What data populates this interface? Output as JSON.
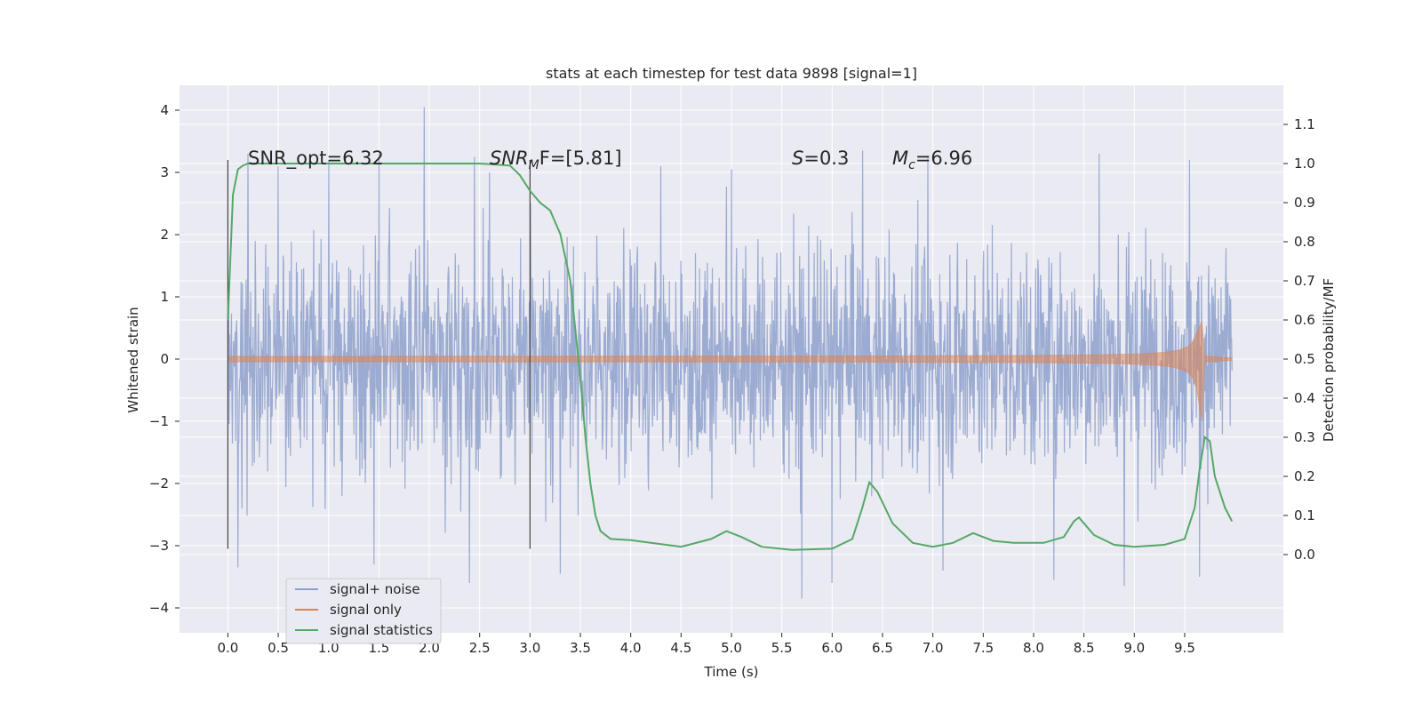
{
  "chart_data": {
    "type": "line",
    "title": "stats at each timestep for test data 9898 [signal=1]",
    "xlabel": "Time (s)",
    "ylabel": "Whitened strain",
    "y2label": "Detection probability/MF",
    "xlim": [
      -0.48,
      10.48
    ],
    "ylim": [
      -4.4,
      4.4
    ],
    "y2lim": [
      -0.2,
      1.2
    ],
    "xticks": [
      "0.0",
      "0.5",
      "1.0",
      "1.5",
      "2.0",
      "2.5",
      "3.0",
      "3.5",
      "4.0",
      "4.5",
      "5.0",
      "5.5",
      "6.0",
      "6.5",
      "7.0",
      "7.5",
      "8.0",
      "8.5",
      "9.0",
      "9.5"
    ],
    "yticks": [
      "4",
      "3",
      "2",
      "1",
      "0",
      "−1",
      "−2",
      "−3",
      "−4"
    ],
    "y2ticks": [
      "1.1",
      "1.0",
      "0.9",
      "0.8",
      "0.7",
      "0.6",
      "0.5",
      "0.4",
      "0.3",
      "0.2",
      "0.1",
      "0.0"
    ],
    "grid": true,
    "legend_position": "lower-left",
    "colors": {
      "noise": "#8da0cb",
      "signal": "#dd8452",
      "stat": "#55a868",
      "panel": "#eaeaf2",
      "grid": "#ffffff"
    },
    "annotations": [
      "SNR_opt=6.32",
      "SNR",
      "M",
      "F=[5.81]",
      "S",
      "=0.3",
      "M",
      "c",
      "=6.96"
    ],
    "series": [
      {
        "name": "signal+ noise",
        "axis": "left",
        "description_range": {
          "t_start": 0.0,
          "t_end": 9.97,
          "y_min": -3.9,
          "y_max": 4.05
        },
        "peaks_high": [
          [
            0.2,
            3.3
          ],
          [
            0.5,
            3.1
          ],
          [
            1.0,
            3.2
          ],
          [
            1.5,
            3.3
          ],
          [
            1.95,
            4.05
          ],
          [
            2.45,
            3.25
          ],
          [
            2.6,
            3.0
          ],
          [
            4.3,
            3.1
          ],
          [
            5.0,
            3.05
          ],
          [
            6.3,
            3.35
          ],
          [
            6.95,
            3.25
          ],
          [
            8.65,
            3.3
          ],
          [
            9.55,
            3.2
          ]
        ],
        "peaks_low": [
          [
            0.1,
            -3.35
          ],
          [
            1.45,
            -3.3
          ],
          [
            2.4,
            -3.6
          ],
          [
            3.3,
            -3.45
          ],
          [
            5.7,
            -3.85
          ],
          [
            6.0,
            -3.6
          ],
          [
            7.1,
            -3.4
          ],
          [
            8.2,
            -3.55
          ],
          [
            8.9,
            -3.65
          ],
          [
            9.65,
            -3.5
          ]
        ]
      },
      {
        "name": "signal only",
        "axis": "left",
        "envelope": {
          "t_start": 0.0,
          "t_merge": 9.67,
          "t_end": 9.97,
          "peak_amp_pos": 0.6,
          "peak_amp_neg": -1.0
        }
      },
      {
        "name": "signal statistics",
        "axis": "right",
        "x": [
          0.0,
          0.05,
          0.1,
          0.15,
          0.2,
          0.3,
          1.0,
          2.0,
          2.5,
          2.8,
          2.9,
          3.0,
          3.1,
          3.2,
          3.3,
          3.4,
          3.5,
          3.55,
          3.6,
          3.65,
          3.7,
          3.8,
          4.0,
          4.2,
          4.5,
          4.8,
          4.95,
          5.1,
          5.3,
          5.6,
          6.0,
          6.2,
          6.3,
          6.37,
          6.45,
          6.6,
          6.8,
          7.0,
          7.2,
          7.4,
          7.6,
          7.8,
          8.1,
          8.3,
          8.4,
          8.45,
          8.5,
          8.6,
          8.8,
          9.0,
          9.3,
          9.5,
          9.6,
          9.65,
          9.7,
          9.75,
          9.8,
          9.9,
          9.97
        ],
        "y": [
          0.6,
          0.92,
          0.985,
          0.995,
          1.0,
          1.0,
          1.0,
          1.0,
          1.0,
          0.995,
          0.97,
          0.93,
          0.9,
          0.88,
          0.82,
          0.7,
          0.45,
          0.3,
          0.18,
          0.1,
          0.06,
          0.04,
          0.037,
          0.03,
          0.02,
          0.04,
          0.06,
          0.045,
          0.02,
          0.012,
          0.015,
          0.04,
          0.12,
          0.185,
          0.16,
          0.08,
          0.03,
          0.02,
          0.03,
          0.055,
          0.035,
          0.03,
          0.03,
          0.045,
          0.085,
          0.095,
          0.08,
          0.05,
          0.025,
          0.02,
          0.025,
          0.04,
          0.12,
          0.22,
          0.3,
          0.29,
          0.2,
          0.12,
          0.085
        ]
      }
    ],
    "vertical_lines": [
      0.0,
      3.0
    ]
  }
}
